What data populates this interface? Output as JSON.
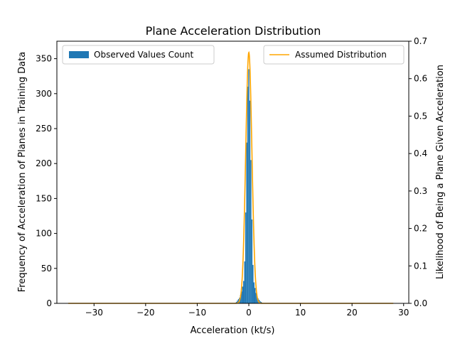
{
  "chart_data": {
    "type": "bar",
    "title": "Plane Acceleration Distribution",
    "xlabel": "Acceleration (kt/s)",
    "ylabel_left": "Frequency of Acceleration of Planes in Training Data",
    "ylabel_right": "Likelihood of Being a Plane Given Acceleration",
    "xlim": [
      -37.2,
      31.0
    ],
    "ylim_left": [
      0,
      375
    ],
    "ylim_right": [
      0,
      0.7
    ],
    "x_ticks": [
      -30,
      -20,
      -10,
      0,
      10,
      20,
      30
    ],
    "x_tick_labels": [
      "−30",
      "−20",
      "−10",
      "0",
      "10",
      "20",
      "30"
    ],
    "y_left_ticks": [
      0,
      50,
      100,
      150,
      200,
      250,
      300,
      350
    ],
    "y_left_tick_labels": [
      "0",
      "50",
      "100",
      "150",
      "200",
      "250",
      "300",
      "350"
    ],
    "y_right_ticks": [
      0,
      0.1,
      0.2,
      0.3,
      0.4,
      0.5,
      0.6,
      0.7
    ],
    "y_right_tick_labels": [
      "0.0",
      "0.1",
      "0.2",
      "0.3",
      "0.4",
      "0.5",
      "0.6",
      "0.7"
    ],
    "grid": false,
    "colors": {
      "histogram": "#1f77b4",
      "curve": "#ffa500",
      "axes": "#000000"
    },
    "histogram": {
      "name": "Observed Values Count",
      "axis": "left",
      "legend_position": "upper-left",
      "bin_width": 0.2,
      "bins": [
        {
          "x": -2.4,
          "count": 2
        },
        {
          "x": -2.2,
          "count": 4
        },
        {
          "x": -2.0,
          "count": 6
        },
        {
          "x": -1.8,
          "count": 8
        },
        {
          "x": -1.6,
          "count": 12
        },
        {
          "x": -1.4,
          "count": 17
        },
        {
          "x": -1.2,
          "count": 24
        },
        {
          "x": -1.0,
          "count": 32
        },
        {
          "x": -0.8,
          "count": 60
        },
        {
          "x": -0.6,
          "count": 130
        },
        {
          "x": -0.4,
          "count": 230
        },
        {
          "x": -0.2,
          "count": 310
        },
        {
          "x": 0.0,
          "count": 335
        },
        {
          "x": 0.2,
          "count": 290
        },
        {
          "x": 0.4,
          "count": 205
        },
        {
          "x": 0.6,
          "count": 120
        },
        {
          "x": 0.8,
          "count": 55
        },
        {
          "x": 1.0,
          "count": 30
        },
        {
          "x": 1.2,
          "count": 22
        },
        {
          "x": 1.4,
          "count": 15
        },
        {
          "x": 1.6,
          "count": 10
        },
        {
          "x": 1.8,
          "count": 7
        },
        {
          "x": 2.0,
          "count": 5
        },
        {
          "x": 2.2,
          "count": 3
        },
        {
          "x": 2.4,
          "count": 2
        }
      ]
    },
    "curve": {
      "name": "Assumed Distribution",
      "axis": "right",
      "legend_position": "upper-right",
      "x_range": [
        -35,
        28
      ],
      "mean": 0.0,
      "std": 0.6,
      "peak": 0.67
    }
  }
}
